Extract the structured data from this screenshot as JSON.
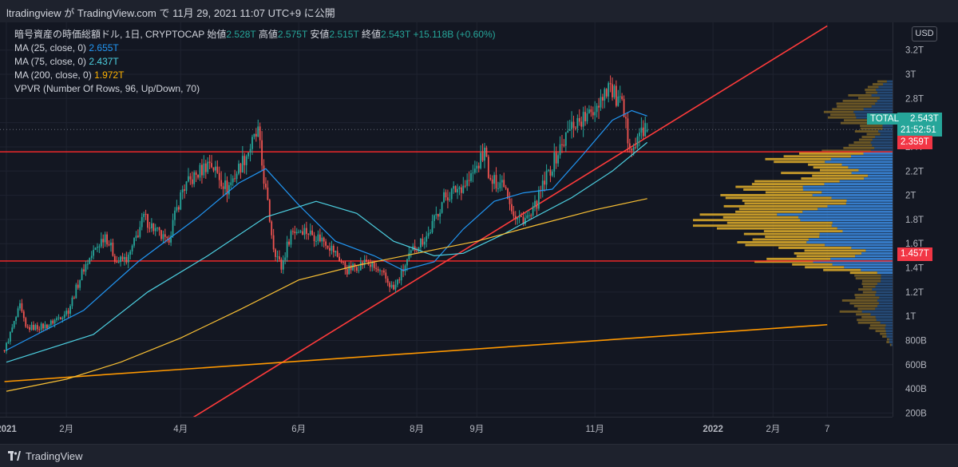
{
  "header": {
    "publish_text": "ltradingview が TradingView.com で 11月 29, 2021 11:07 UTC+9 に公開"
  },
  "legend": {
    "symbol_line": "暗号資産の時価総額ドル, 1日, CRYPTOCAP",
    "open_label": "始値",
    "open": "2.528T",
    "high_label": "高値",
    "high": "2.575T",
    "low_label": "安値",
    "low": "2.515T",
    "close_label": "終値",
    "close": "2.543T",
    "change": "+15.118B (+0.60%)",
    "ma25_label": "MA (25, close, 0)",
    "ma25_value": "2.655T",
    "ma75_label": "MA (75, close, 0)",
    "ma75_value": "2.437T",
    "ma200_label": "MA (200, close, 0)",
    "ma200_value": "1.972T",
    "vpvr_label": "VPVR (Number Of Rows, 96, Up/Down, 70)"
  },
  "currency": "USD",
  "price_labels": {
    "total_name": "TOTAL",
    "total_value": "2.543T",
    "countdown": "21:52:51",
    "upper_line": "2.359T",
    "lower_line": "1.457T"
  },
  "footer": {
    "brand": "TradingView"
  },
  "colors": {
    "up": "#26a69a",
    "down": "#ef5350",
    "ma25": "#2196f3",
    "ma75": "#4dd0e1",
    "ma200": "#f9c034",
    "hline": "#ff2a2a",
    "trend": "#ff3b3b",
    "orange_trend": "#ff9800",
    "vp_up": "#3a86d8",
    "vp_down": "#d4a52a"
  },
  "chart_data": {
    "type": "candlestick",
    "title": "暗号資産の時価総額ドル, 1日, CRYPTOCAP",
    "y_scale": "linear",
    "ylim": [
      0.13,
      3.35
    ],
    "y_ticks": [
      {
        "v": 3.2,
        "label": "3.2T"
      },
      {
        "v": 3.0,
        "label": "3T"
      },
      {
        "v": 2.8,
        "label": "2.8T"
      },
      {
        "v": 2.6,
        "label": "2.6T"
      },
      {
        "v": 2.4,
        "label": "2.4T"
      },
      {
        "v": 2.2,
        "label": "2.2T"
      },
      {
        "v": 2.0,
        "label": "2T"
      },
      {
        "v": 1.8,
        "label": "1.8T"
      },
      {
        "v": 1.6,
        "label": "1.6T"
      },
      {
        "v": 1.4,
        "label": "1.4T"
      },
      {
        "v": 1.2,
        "label": "1.2T"
      },
      {
        "v": 1.0,
        "label": "1T"
      },
      {
        "v": 0.8,
        "label": "800B"
      },
      {
        "v": 0.6,
        "label": "600B"
      },
      {
        "v": 0.4,
        "label": "400B"
      },
      {
        "v": 0.2,
        "label": "200B"
      }
    ],
    "x_ticks": [
      {
        "date": "2021-01-01",
        "label": "2021"
      },
      {
        "date": "2021-02-01",
        "label": "2月"
      },
      {
        "date": "2021-04-01",
        "label": "4月"
      },
      {
        "date": "2021-06-01",
        "label": "6月"
      },
      {
        "date": "2021-08-01",
        "label": "8月"
      },
      {
        "date": "2021-09-01",
        "label": "9月"
      },
      {
        "date": "2021-11-01",
        "label": "11月"
      },
      {
        "date": "2022-01-01",
        "label": "2022"
      },
      {
        "date": "2022-02-01",
        "label": "2月"
      },
      {
        "date": "2022-03-01",
        "label": "7"
      }
    ],
    "close_path": [
      [
        "2020-12-31",
        0.72
      ],
      [
        "2021-01-08",
        1.08
      ],
      [
        "2021-01-11",
        0.9
      ],
      [
        "2021-01-22",
        0.92
      ],
      [
        "2021-02-02",
        1.05
      ],
      [
        "2021-02-10",
        1.4
      ],
      [
        "2021-02-21",
        1.68
      ],
      [
        "2021-02-27",
        1.45
      ],
      [
        "2021-03-05",
        1.48
      ],
      [
        "2021-03-13",
        1.82
      ],
      [
        "2021-03-25",
        1.6
      ],
      [
        "2021-04-02",
        2.05
      ],
      [
        "2021-04-16",
        2.28
      ],
      [
        "2021-04-25",
        2.05
      ],
      [
        "2021-05-03",
        2.28
      ],
      [
        "2021-05-11",
        2.52
      ],
      [
        "2021-05-13",
        2.25
      ],
      [
        "2021-05-19",
        1.58
      ],
      [
        "2021-05-23",
        1.4
      ],
      [
        "2021-05-28",
        1.7
      ],
      [
        "2021-06-03",
        1.72
      ],
      [
        "2021-06-15",
        1.62
      ],
      [
        "2021-06-20",
        1.52
      ],
      [
        "2021-06-26",
        1.38
      ],
      [
        "2021-07-06",
        1.45
      ],
      [
        "2021-07-15",
        1.33
      ],
      [
        "2021-07-20",
        1.22
      ],
      [
        "2021-07-30",
        1.55
      ],
      [
        "2021-08-07",
        1.68
      ],
      [
        "2021-08-15",
        1.98
      ],
      [
        "2021-08-28",
        2.12
      ],
      [
        "2021-09-06",
        2.38
      ],
      [
        "2021-09-07",
        2.1
      ],
      [
        "2021-09-15",
        2.12
      ],
      [
        "2021-09-21",
        1.8
      ],
      [
        "2021-09-29",
        1.82
      ],
      [
        "2021-10-07",
        2.15
      ],
      [
        "2021-10-15",
        2.42
      ],
      [
        "2021-10-21",
        2.6
      ],
      [
        "2021-10-29",
        2.65
      ],
      [
        "2021-11-08",
        2.92
      ],
      [
        "2021-11-10",
        2.85
      ],
      [
        "2021-11-15",
        2.72
      ],
      [
        "2021-11-18",
        2.48
      ],
      [
        "2021-11-22",
        2.4
      ],
      [
        "2021-11-25",
        2.55
      ],
      [
        "2021-11-28",
        2.543
      ]
    ],
    "ohlc_last": {
      "date": "2021-11-28",
      "open": 2.528,
      "high": 2.575,
      "low": 2.515,
      "close": 2.543,
      "change": "+15.118B (+0.60%)"
    },
    "moving_averages": [
      {
        "name": "MA (25, close, 0)",
        "last": 2.655,
        "points": [
          [
            "2021-01-01",
            0.72
          ],
          [
            "2021-02-10",
            1.05
          ],
          [
            "2021-03-10",
            1.45
          ],
          [
            "2021-04-10",
            1.82
          ],
          [
            "2021-05-01",
            2.1
          ],
          [
            "2021-05-15",
            2.22
          ],
          [
            "2021-06-01",
            1.92
          ],
          [
            "2021-06-20",
            1.62
          ],
          [
            "2021-07-10",
            1.5
          ],
          [
            "2021-07-25",
            1.38
          ],
          [
            "2021-08-10",
            1.45
          ],
          [
            "2021-08-25",
            1.72
          ],
          [
            "2021-09-10",
            1.95
          ],
          [
            "2021-09-25",
            2.02
          ],
          [
            "2021-10-10",
            2.05
          ],
          [
            "2021-10-25",
            2.32
          ],
          [
            "2021-11-10",
            2.62
          ],
          [
            "2021-11-20",
            2.7
          ],
          [
            "2021-11-28",
            2.655
          ]
        ]
      },
      {
        "name": "MA (75, close, 0)",
        "last": 2.437,
        "points": [
          [
            "2021-01-01",
            0.62
          ],
          [
            "2021-02-15",
            0.85
          ],
          [
            "2021-03-15",
            1.2
          ],
          [
            "2021-04-15",
            1.5
          ],
          [
            "2021-05-15",
            1.82
          ],
          [
            "2021-06-10",
            1.95
          ],
          [
            "2021-07-01",
            1.85
          ],
          [
            "2021-07-20",
            1.62
          ],
          [
            "2021-08-10",
            1.5
          ],
          [
            "2021-08-25",
            1.52
          ],
          [
            "2021-09-15",
            1.68
          ],
          [
            "2021-10-01",
            1.82
          ],
          [
            "2021-10-20",
            1.98
          ],
          [
            "2021-11-10",
            2.2
          ],
          [
            "2021-11-28",
            2.437
          ]
        ]
      },
      {
        "name": "MA (200, close, 0)",
        "last": 1.972,
        "points": [
          [
            "2021-01-01",
            0.38
          ],
          [
            "2021-02-01",
            0.48
          ],
          [
            "2021-03-01",
            0.62
          ],
          [
            "2021-04-01",
            0.82
          ],
          [
            "2021-05-01",
            1.05
          ],
          [
            "2021-06-01",
            1.3
          ],
          [
            "2021-07-01",
            1.42
          ],
          [
            "2021-08-01",
            1.52
          ],
          [
            "2021-09-01",
            1.62
          ],
          [
            "2021-10-01",
            1.75
          ],
          [
            "2021-11-01",
            1.88
          ],
          [
            "2021-11-28",
            1.972
          ]
        ]
      }
    ],
    "horizontal_lines": [
      2.359,
      1.457
    ],
    "trendlines": [
      {
        "name": "uptrend",
        "from": [
          "2021-04-01",
          0.1
        ],
        "to": [
          "2022-03-01",
          3.4
        ]
      },
      {
        "name": "long-term",
        "from": [
          "2020-12-31",
          0.46
        ],
        "to": [
          "2022-03-01",
          0.93
        ]
      }
    ],
    "volume_profile_range": [
      0.75,
      2.95
    ],
    "volume_profile_rows": 96
  }
}
